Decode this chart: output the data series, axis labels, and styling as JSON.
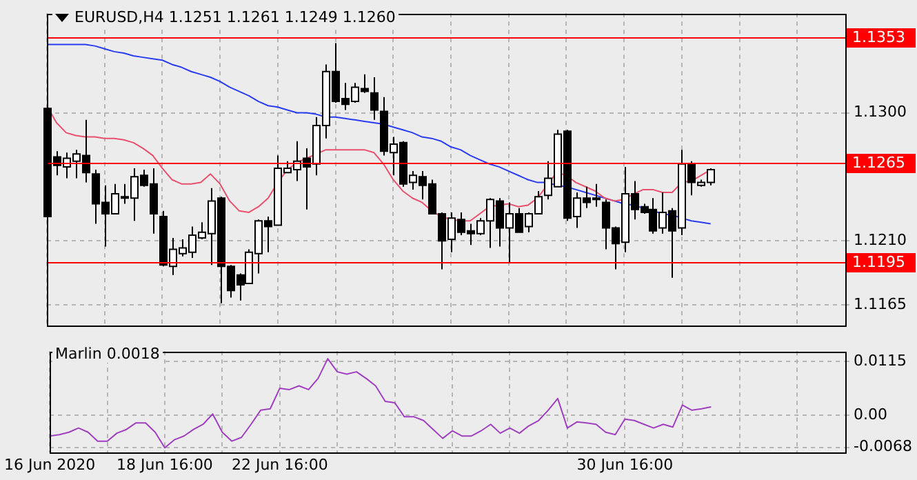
{
  "chart_data": [
    {
      "type": "candlestick",
      "title": "EURUSD,H4  1.1251 1.1261 1.1249 1.1260",
      "categories": [
        null,
        null,
        null,
        null,
        null,
        null,
        null,
        null,
        null,
        null,
        null,
        null,
        null,
        null,
        null,
        null,
        null,
        null,
        null,
        null,
        null,
        null,
        null,
        null,
        null,
        null,
        null,
        null,
        null,
        null,
        null,
        null,
        null,
        null,
        null,
        null,
        null,
        null,
        null,
        null,
        null,
        null,
        null,
        null,
        null,
        null,
        null,
        null,
        null,
        null,
        null,
        null,
        null,
        null,
        null,
        null,
        null,
        null,
        null,
        null,
        null,
        null,
        null,
        null,
        null,
        null,
        null,
        null,
        null,
        null,
        null,
        null,
        null,
        null,
        null,
        null,
        null,
        null,
        null,
        null,
        null,
        null,
        null,
        null
      ],
      "ohlc": [
        [
          1.1303,
          1.1304,
          1.1226,
          1.1227
        ],
        [
          1.1269,
          1.1273,
          1.1256,
          1.1263
        ],
        [
          1.1262,
          1.1272,
          1.1254,
          1.1268
        ],
        [
          1.1266,
          1.1274,
          1.1254,
          1.1271
        ],
        [
          1.127,
          1.1295,
          1.1251,
          1.1258
        ],
        [
          1.1257,
          1.126,
          1.1222,
          1.1236
        ],
        [
          1.1237,
          1.1249,
          1.1206,
          1.1229
        ],
        [
          1.1229,
          1.125,
          1.1229,
          1.1243
        ],
        [
          1.124,
          1.125,
          1.1236,
          1.1241
        ],
        [
          1.124,
          1.1261,
          1.1224,
          1.1255
        ],
        [
          1.1256,
          1.126,
          1.1248,
          1.1249
        ],
        [
          1.125,
          1.1261,
          1.1215,
          1.1229
        ],
        [
          1.1227,
          1.1231,
          1.1192,
          1.1193
        ],
        [
          1.1192,
          1.1212,
          1.1186,
          1.1204
        ],
        [
          1.1201,
          1.1211,
          1.1199,
          1.1205
        ],
        [
          1.1202,
          1.122,
          1.1198,
          1.1214
        ],
        [
          1.1212,
          1.1223,
          1.1211,
          1.1216
        ],
        [
          1.1215,
          1.1247,
          1.1193,
          1.1238
        ],
        [
          1.124,
          1.1241,
          1.1166,
          1.1192
        ],
        [
          1.1192,
          1.1193,
          1.117,
          1.1175
        ],
        [
          1.1186,
          1.1187,
          1.1168,
          1.1179
        ],
        [
          1.118,
          1.1204,
          1.118,
          1.1202
        ],
        [
          1.1201,
          1.1225,
          1.1187,
          1.1224
        ],
        [
          1.1224,
          1.1227,
          1.1202,
          1.122
        ],
        [
          1.1221,
          1.127,
          1.1221,
          1.1261
        ],
        [
          1.1258,
          1.1266,
          1.1258,
          1.1261
        ],
        [
          1.126,
          1.128,
          1.1252,
          1.1266
        ],
        [
          1.1268,
          1.1275,
          1.1232,
          1.1262
        ],
        [
          1.1264,
          1.1297,
          1.1256,
          1.1291
        ],
        [
          1.1291,
          1.1334,
          1.1282,
          1.1329
        ],
        [
          1.1329,
          1.1349,
          1.1307,
          1.1308
        ],
        [
          1.131,
          1.1321,
          1.1302,
          1.1306
        ],
        [
          1.1308,
          1.1321,
          1.1307,
          1.1318
        ],
        [
          1.1317,
          1.1327,
          1.1314,
          1.1315
        ],
        [
          1.1314,
          1.1325,
          1.1295,
          1.1302
        ],
        [
          1.1301,
          1.1311,
          1.127,
          1.1273
        ],
        [
          1.1272,
          1.1283,
          1.1256,
          1.1278
        ],
        [
          1.1279,
          1.128,
          1.1248,
          1.125
        ],
        [
          1.1251,
          1.1259,
          1.1246,
          1.1256
        ],
        [
          1.1255,
          1.1259,
          1.1239,
          1.1249
        ],
        [
          1.125,
          1.1253,
          1.1229,
          1.1229
        ],
        [
          1.1229,
          1.123,
          1.119,
          1.121
        ],
        [
          1.1211,
          1.123,
          1.1202,
          1.1226
        ],
        [
          1.1225,
          1.123,
          1.1214,
          1.1216
        ],
        [
          1.1217,
          1.1222,
          1.1207,
          1.1215
        ],
        [
          1.1215,
          1.1226,
          1.1214,
          1.1224
        ],
        [
          1.1224,
          1.124,
          1.1205,
          1.1239
        ],
        [
          1.1238,
          1.124,
          1.1206,
          1.1219
        ],
        [
          1.1219,
          1.1237,
          1.1195,
          1.1229
        ],
        [
          1.1229,
          1.1233,
          1.1216,
          1.1216
        ],
        [
          1.122,
          1.123,
          1.1216,
          1.1229
        ],
        [
          1.1229,
          1.1245,
          1.1229,
          1.1241
        ],
        [
          1.1242,
          1.1266,
          1.1239,
          1.1254
        ],
        [
          1.1248,
          1.1288,
          1.1248,
          1.1285
        ],
        [
          1.1287,
          1.1288,
          1.1224,
          1.1226
        ],
        [
          1.1227,
          1.1244,
          1.1219,
          1.124
        ],
        [
          1.124,
          1.1248,
          1.1233,
          1.1237
        ],
        [
          1.124,
          1.125,
          1.1234,
          1.1239
        ],
        [
          1.1237,
          1.1239,
          1.1204,
          1.1219
        ],
        [
          1.1219,
          1.122,
          1.119,
          1.1208
        ],
        [
          1.1209,
          1.1262,
          1.1202,
          1.1243
        ],
        [
          1.1243,
          1.1252,
          1.1225,
          1.1232
        ],
        [
          1.1234,
          1.1236,
          1.1229,
          1.123
        ],
        [
          1.1232,
          1.124,
          1.1215,
          1.1217
        ],
        [
          1.1219,
          1.1244,
          1.1215,
          1.123
        ],
        [
          1.1231,
          1.1233,
          1.1184,
          1.1217
        ],
        [
          1.1219,
          1.1274,
          1.1214,
          1.1264
        ],
        [
          1.1264,
          1.1266,
          1.1242,
          1.1251
        ],
        [
          1.1249,
          1.1253,
          1.1248,
          1.1251
        ],
        [
          1.1251,
          1.1261,
          1.1249,
          1.126
        ],
        null,
        null,
        null,
        null,
        null,
        null,
        null,
        null,
        null,
        null,
        null,
        null,
        null,
        null
      ],
      "series": [
        {
          "type": "line",
          "color": "#e8506e",
          "values": [
            1.1305,
            1.1293,
            1.1286,
            1.1284,
            1.1283,
            1.1283,
            1.1282,
            1.1282,
            1.1281,
            1.1279,
            1.1275,
            1.127,
            1.1261,
            1.1253,
            1.125,
            1.125,
            1.1251,
            1.1257,
            1.125,
            1.1238,
            1.1231,
            1.123,
            1.1234,
            1.124,
            1.1251,
            1.126,
            1.1265,
            1.1268,
            1.1271,
            1.1274,
            1.1274,
            1.1274,
            1.1274,
            1.1274,
            1.1272,
            1.1264,
            1.1253,
            1.1245,
            1.124,
            1.1237,
            1.1231,
            1.1227,
            1.1225,
            1.1224,
            1.1224,
            1.1229,
            1.1234,
            1.1235,
            1.1236,
            1.1234,
            1.1235,
            1.124,
            1.1249,
            1.1258,
            1.1256,
            1.1251,
            1.1248,
            1.1245,
            1.124,
            1.1238,
            1.1239,
            1.1243,
            1.1246,
            1.1246,
            1.1244,
            1.1244,
            1.1251,
            1.1252,
            1.1256,
            1.126,
            null,
            null,
            null,
            null,
            null,
            null,
            null,
            null,
            null,
            null,
            null,
            null,
            null,
            null
          ]
        },
        {
          "type": "line",
          "color": "#2a3cf0",
          "values": [
            1.1348,
            1.1348,
            1.1348,
            1.1348,
            1.1348,
            1.1347,
            1.1345,
            1.1343,
            1.1342,
            1.134,
            1.1339,
            1.1338,
            1.1337,
            1.1334,
            1.1332,
            1.1329,
            1.1327,
            1.1325,
            1.1322,
            1.1318,
            1.1315,
            1.1312,
            1.1308,
            1.1305,
            1.1304,
            1.1302,
            1.13,
            1.13,
            1.1299,
            1.1297,
            1.1297,
            1.1296,
            1.1295,
            1.1294,
            1.1293,
            1.1292,
            1.129,
            1.1288,
            1.1286,
            1.1283,
            1.1282,
            1.128,
            1.1276,
            1.1274,
            1.127,
            1.1267,
            1.1264,
            1.1262,
            1.1259,
            1.1256,
            1.1253,
            1.1251,
            1.1251,
            1.1249,
            1.1248,
            1.1246,
            1.1244,
            1.1242,
            1.124,
            1.1238,
            1.1236,
            1.1235,
            1.1233,
            1.1231,
            1.1229,
            1.1228,
            1.1226,
            1.1224,
            1.1223,
            1.1222,
            null,
            null,
            null,
            null,
            null,
            null,
            null,
            null,
            null,
            null,
            null,
            null,
            null,
            null
          ]
        }
      ],
      "ylim": [
        1.1151,
        1.137
      ],
      "yticks": [
        {
          "value": 1.13,
          "label": "1.1300"
        },
        {
          "value": 1.121,
          "label": "1.1210"
        },
        1.1165
      ],
      "ref_lines": [
        {
          "axis": "y",
          "value": 1.1353,
          "label": "1.1353",
          "color": "#ff0000"
        },
        {
          "axis": "y",
          "value": 1.1265,
          "label": "1.1265",
          "color": "#ff0000"
        },
        {
          "axis": "y",
          "value": 1.1195,
          "label": "1.1195",
          "color": "#ff0000"
        }
      ],
      "grid": true,
      "tick_labels": "y"
    },
    {
      "type": "line",
      "title": "Marlin 0.0018",
      "categories": [
        "16 Jun 2020",
        null,
        null,
        null,
        null,
        null,
        null,
        null,
        null,
        null,
        null,
        null,
        "18 Jun 16:00",
        null,
        null,
        null,
        null,
        null,
        null,
        null,
        null,
        null,
        null,
        null,
        "22 Jun 16:00",
        null,
        null,
        null,
        null,
        null,
        null,
        null,
        null,
        null,
        null,
        null,
        null,
        null,
        null,
        null,
        null,
        null,
        null,
        null,
        null,
        null,
        null,
        null,
        null,
        null,
        null,
        null,
        null,
        null,
        null,
        null,
        null,
        null,
        null,
        null,
        "30 Jun 16:00",
        null,
        null,
        null,
        null,
        null,
        null,
        null,
        null,
        null,
        null,
        null,
        null,
        null,
        null,
        null,
        null,
        null,
        null,
        null,
        null,
        null,
        null,
        null
      ],
      "series": [
        {
          "color": "#a040c0",
          "values": [
            -0.0044,
            -0.0041,
            -0.0036,
            -0.0027,
            -0.0036,
            -0.0055,
            -0.0055,
            -0.0038,
            -0.003,
            -0.0016,
            -0.0016,
            -0.0036,
            -0.0069,
            -0.0052,
            -0.0044,
            -0.003,
            -0.0019,
            0.0003,
            -0.0036,
            -0.0055,
            -0.0047,
            -0.0019,
            0.0011,
            0.0014,
            0.0058,
            0.0055,
            0.0063,
            0.0055,
            0.0079,
            0.0121,
            0.0093,
            0.0088,
            0.0093,
            0.0079,
            0.0063,
            0.003,
            0.0027,
            -0.0003,
            -0.0003,
            -0.0011,
            -0.003,
            -0.0049,
            -0.0033,
            -0.0044,
            -0.0044,
            -0.0033,
            -0.0019,
            -0.0038,
            -0.0027,
            -0.0038,
            -0.0022,
            -0.0011,
            0.0011,
            0.0036,
            -0.0027,
            -0.0014,
            -0.0016,
            -0.0019,
            -0.0036,
            -0.0041,
            -0.0008,
            -0.0011,
            -0.0019,
            -0.0027,
            -0.0019,
            -0.0025,
            0.0022,
            0.0011,
            0.0014,
            0.0018,
            null,
            null,
            null,
            null,
            null,
            null,
            null,
            null,
            null,
            null,
            null,
            null,
            null,
            null
          ]
        }
      ],
      "ylim": [
        -0.0079,
        0.0137
      ],
      "yticks": [
        0.0115,
        {
          "value": 0,
          "label": "0.00"
        },
        -0.0068
      ],
      "grid": true
    }
  ]
}
